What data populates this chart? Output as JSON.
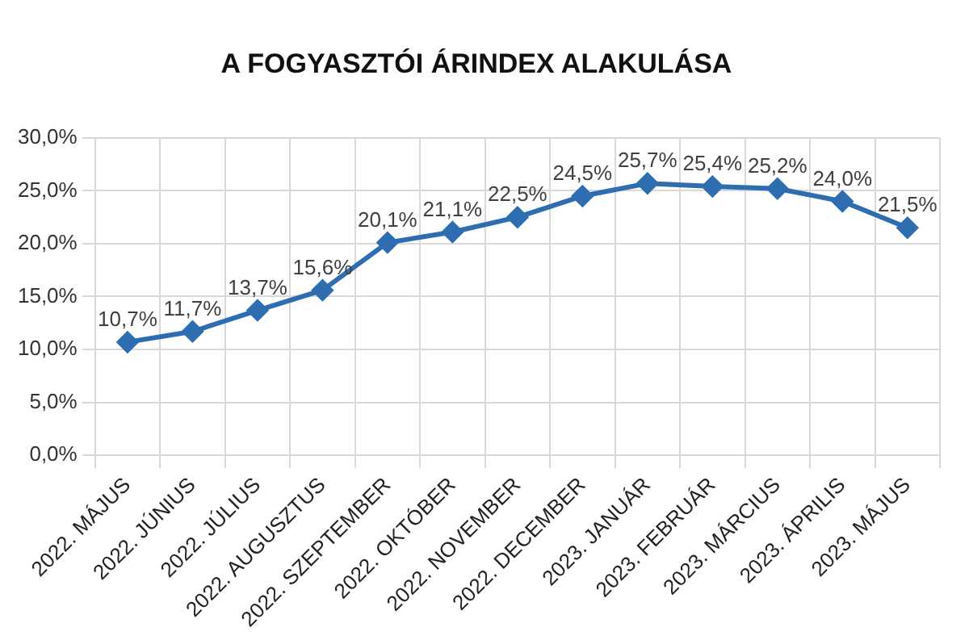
{
  "chart_data": {
    "type": "line",
    "title": "A FOGYASZTÓI ÁRINDEX ALAKULÁSA",
    "categories": [
      "2022. MÁJUS",
      "2022. JÚNIUS",
      "2022. JÚLIUS",
      "2022. AUGUSZTUS",
      "2022. SZEPTEMBER",
      "2022. OKTÓBER",
      "2022. NOVEMBER",
      "2022. DECEMBER",
      "2023. JANUÁR",
      "2023. FEBRUÁR",
      "2023. MÁRCIUS",
      "2023. ÁPRILIS",
      "2023. MÁJUS"
    ],
    "series": [
      {
        "color": "#2e6eb0",
        "values": [
          10.7,
          11.7,
          13.7,
          15.6,
          20.1,
          21.1,
          22.5,
          24.5,
          25.7,
          25.4,
          25.2,
          24.0,
          21.5
        ],
        "value_labels": [
          "10,7%",
          "11,7%",
          "13,7%",
          "15,6%",
          "20,1%",
          "21,1%",
          "22,5%",
          "24,5%",
          "25,7%",
          "25,4%",
          "25,2%",
          "24,0%",
          "21,5%"
        ]
      }
    ],
    "ylim": [
      0,
      30
    ],
    "yticks": [
      {
        "value": 0,
        "label": "0,0%"
      },
      {
        "value": 5,
        "label": "5,0%"
      },
      {
        "value": 10,
        "label": "10,0%"
      },
      {
        "value": 15,
        "label": "15,0%"
      },
      {
        "value": 20,
        "label": "20,0%"
      },
      {
        "value": 25,
        "label": "25,0%"
      },
      {
        "value": 30,
        "label": "30,0%"
      }
    ],
    "grid": true,
    "legend": false,
    "marker": "diamond",
    "line_style": "solid"
  }
}
